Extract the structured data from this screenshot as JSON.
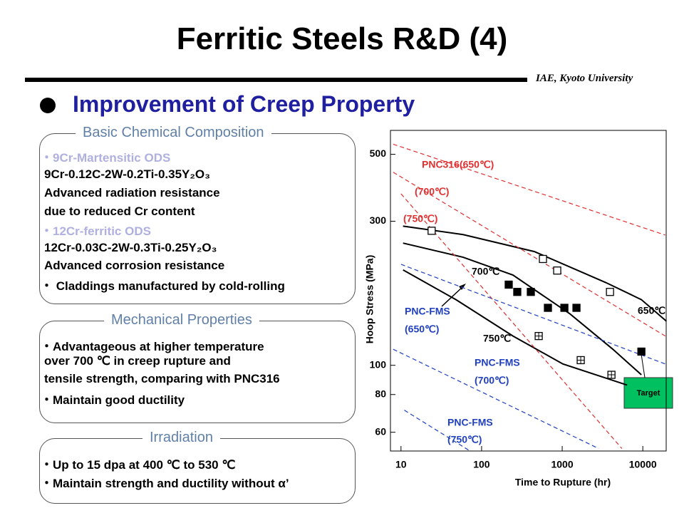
{
  "title": "Ferritic Steels R&D (4)",
  "affiliation": "IAE, Kyoto University",
  "heading": "Improvement of Creep Property",
  "sections": [
    {
      "title": "Basic Chemical Composition",
      "items": [
        "・9Cr-Martensitic ODS",
        "9Cr-0.12C-2W-0.2Ti-0.35Y₂O₃",
        "Advanced radiation resistance",
        "due to reduced Cr content",
        "・12Cr-ferritic ODS",
        "12Cr-0.03C-2W-0.3Ti-0.25Y₂O₃",
        "Advanced corrosion resistance",
        "・ Claddings manufactured by cold-rolling"
      ]
    },
    {
      "title": "Mechanical Properties",
      "items": [
        "・Advantageous at higher temperature",
        "over 700 ℃ in creep rupture and",
        "tensile strength, comparing with PNC316",
        "・Maintain good ductility"
      ]
    },
    {
      "title": "Irradiation",
      "items": [
        "・Up to 15 dpa at 400 ℃ to 530 ℃",
        "・Maintain strength and ductility without α’"
      ]
    }
  ],
  "chart_data": {
    "type": "scatter",
    "x_label": "Time to Rupture (hr)",
    "y_label": "Hoop Stress (MPa)",
    "xlim": [
      7.4,
      19500
    ],
    "ylim": [
      52,
      600
    ],
    "xscale": "log",
    "yscale": "log",
    "xticks": [
      10,
      100,
      1000,
      10000
    ],
    "yticks": [
      60,
      80,
      100,
      300,
      500
    ],
    "series": [
      {
        "marker": "filled",
        "color": "#000000",
        "x": [
          217,
          277,
          408,
          665,
          1064,
          1503,
          9600
        ],
        "values": [
          185,
          175,
          175,
          155,
          155,
          155,
          111
        ]
      },
      {
        "marker": "open",
        "color": "#000000",
        "x": [
          24,
          577,
          867,
          3917
        ],
        "values": [
          279,
          225,
          206,
          175
        ]
      },
      {
        "marker": "crossed",
        "color": "#000000",
        "x": [
          511,
          1698,
          4083
        ],
        "values": [
          125,
          104,
          93
        ]
      }
    ],
    "curves": [
      {
        "style": "solid",
        "color": "#000000",
        "x": [
          10.6,
          59,
          452,
          3467,
          9600,
          19600
        ],
        "values": [
          289,
          271,
          238,
          188,
          165,
          140
        ]
      },
      {
        "style": "solid",
        "color": "#000000",
        "x": [
          10.6,
          59,
          245,
          1250,
          4250,
          9600
        ],
        "values": [
          254,
          228,
          199,
          148,
          113,
          93
        ]
      },
      {
        "style": "solid",
        "color": "#000000",
        "x": [
          10.6,
          48,
          245,
          1020,
          6380
        ],
        "values": [
          207,
          165,
          125,
          101,
          86
        ]
      },
      {
        "style": "dashed",
        "color": "#e03030",
        "x": [
          8,
          19000
        ],
        "values": [
          540,
          270
        ]
      },
      {
        "style": "dashed",
        "color": "#e03030",
        "x": [
          8,
          19000
        ],
        "values": [
          436,
          125
        ]
      },
      {
        "style": "dashed",
        "color": "#e03030",
        "x": [
          10,
          5500
        ],
        "values": [
          370,
          53
        ]
      },
      {
        "style": "dashed",
        "color": "#2040c0",
        "x": [
          10,
          19000
        ],
        "values": [
          216,
          101
        ]
      },
      {
        "style": "dashed",
        "color": "#2040c0",
        "x": [
          8,
          2830
        ],
        "values": [
          113,
          53
        ]
      },
      {
        "style": "dashed",
        "color": "#2040c0",
        "x": [
          11,
          72
        ],
        "values": [
          71,
          52
        ]
      }
    ],
    "annotations": [
      "PNC316(650℃)",
      "(700℃)",
      "(750℃)",
      "700℃",
      "650℃",
      "750℃",
      "PNC-FMS",
      "(650℃)",
      "PNC-FMS",
      "(700℃)",
      "PNC-FMS",
      "(750℃)",
      "Target"
    ]
  }
}
